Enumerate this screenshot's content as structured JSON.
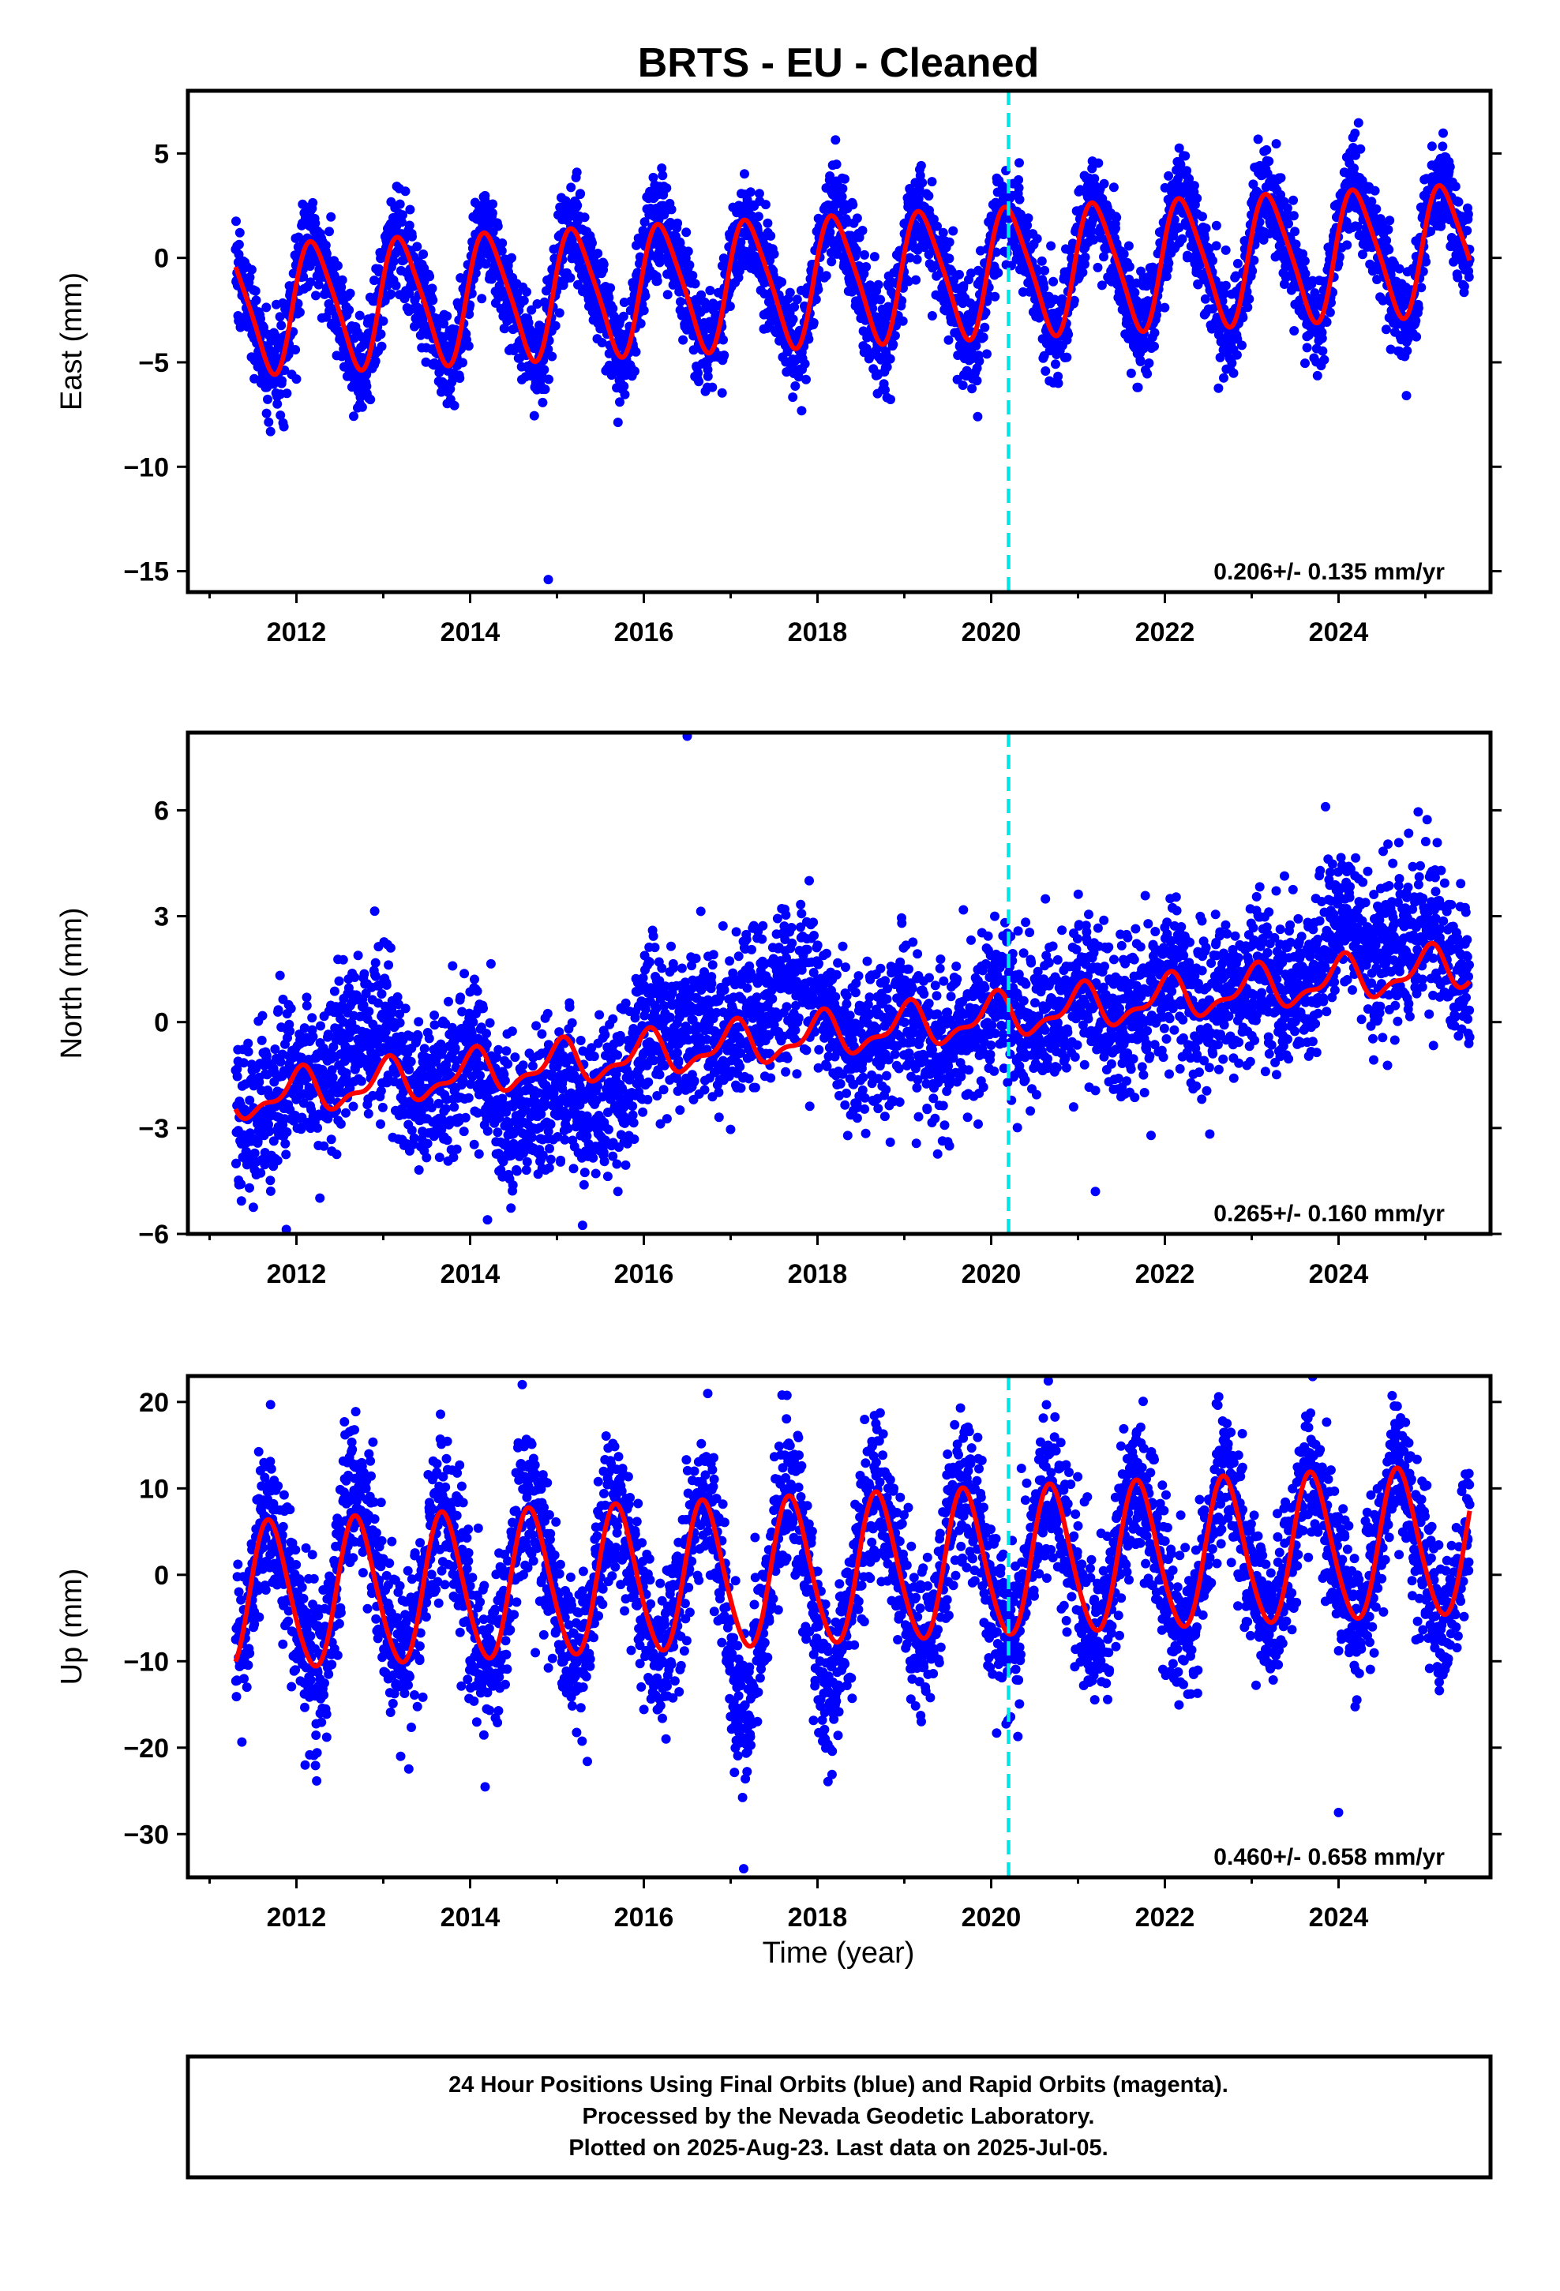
{
  "title": "BRTS  - EU - Cleaned",
  "xlabel": "Time (year)",
  "footer": [
    "24 Hour Positions Using Final Orbits (blue) and Rapid Orbits (magenta).",
    "Processed by the Nevada Geodetic Laboratory.",
    "Plotted on 2025-Aug-23. Last data on 2025-Jul-05."
  ],
  "colors": {
    "points": "#0000ff",
    "model": "#ff0000",
    "event_line": "#00e5e5",
    "frame": "#000000"
  },
  "chart_data": [
    {
      "type": "scatter",
      "name": "east",
      "ylabel": "East (mm)",
      "xlim": [
        2010.75,
        2025.75
      ],
      "ylim": [
        -16,
        8
      ],
      "xticks": [
        2012,
        2014,
        2016,
        2018,
        2020,
        2022,
        2024
      ],
      "yticks": [
        5,
        0,
        -5,
        -10,
        -15
      ],
      "ytick_labels": [
        "5",
        "0",
        "−5",
        "−10",
        "−15"
      ],
      "rate_label": "0.206+/- 0.135 mm/yr",
      "event_line_x": 2020.2,
      "data_start": 2011.3,
      "data_end": 2025.51,
      "model": {
        "intercept": -1.0,
        "rate": 0.206,
        "ref_year": 2018.4,
        "annual_amp": 3.0,
        "annual_phase_deg": 15,
        "semiannual_amp": 0.5,
        "semiannual_phase_deg": 40
      },
      "scatter_sd": 1.2,
      "outliers": [
        [
          2014.9,
          -15.4
        ],
        [
          2019.95,
          -4.6
        ],
        [
          2012.0,
          -5.8
        ]
      ]
    },
    {
      "type": "scatter",
      "name": "north",
      "ylabel": "North (mm)",
      "xlim": [
        2010.75,
        2025.75
      ],
      "ylim": [
        -6,
        8.2
      ],
      "xticks": [
        2012,
        2014,
        2016,
        2018,
        2020,
        2022,
        2024
      ],
      "yticks": [
        6,
        3,
        0,
        -3,
        -6
      ],
      "ytick_labels": [
        "6",
        "3",
        "0",
        "−3",
        "−6"
      ],
      "rate_label": "0.265+/- 0.160 mm/yr",
      "event_line_x": 2020.2,
      "data_start": 2011.3,
      "data_end": 2025.51,
      "model": {
        "intercept": -0.3,
        "rate": 0.265,
        "ref_year": 2018.4,
        "annual_amp": 0.55,
        "annual_phase_deg": 80,
        "semiannual_amp": 0.25,
        "semiannual_phase_deg": 20
      },
      "scatter_sd": 1.1,
      "regional_offsets": [
        {
          "start": 2012.2,
          "end": 2013.2,
          "offset": 1.5
        },
        {
          "start": 2014.0,
          "end": 2016.0,
          "offset": -1.3
        },
        {
          "start": 2016.0,
          "end": 2017.0,
          "offset": 1.0
        },
        {
          "start": 2017.1,
          "end": 2018.1,
          "offset": 1.8
        },
        {
          "start": 2019.0,
          "end": 2019.6,
          "offset": -0.8
        },
        {
          "start": 2023.4,
          "end": 2025.5,
          "offset": 1.1
        }
      ],
      "outliers": [
        [
          2016.5,
          8.1
        ],
        [
          2014.2,
          -5.6
        ],
        [
          2023.85,
          6.1
        ],
        [
          2021.2,
          -4.8
        ]
      ]
    },
    {
      "type": "scatter",
      "name": "up",
      "ylabel": "Up (mm)",
      "xlim": [
        2010.75,
        2025.75
      ],
      "ylim": [
        -35,
        23
      ],
      "xticks": [
        2012,
        2014,
        2016,
        2018,
        2020,
        2022,
        2024
      ],
      "yticks": [
        20,
        10,
        0,
        -10,
        -20,
        -30
      ],
      "ytick_labels": [
        "20",
        "10",
        "0",
        "−10",
        "−20",
        "−30"
      ],
      "rate_label": "0.460+/- 0.658 mm/yr",
      "event_line_x": 2020.2,
      "data_start": 2011.3,
      "data_end": 2025.51,
      "model": {
        "intercept": 0.5,
        "rate": 0.46,
        "ref_year": 2018.4,
        "annual_amp": 8.5,
        "annual_phase_deg": 200,
        "semiannual_amp": 0.8,
        "semiannual_phase_deg": 10
      },
      "scatter_sd": 4.5,
      "regional_offsets": [
        {
          "start": 2012.4,
          "end": 2012.9,
          "offset": 4.0
        },
        {
          "start": 2016.9,
          "end": 2017.3,
          "offset": -9.0
        },
        {
          "start": 2017.9,
          "end": 2018.3,
          "offset": -8.0
        }
      ],
      "outliers": [
        [
          2017.15,
          -34
        ],
        [
          2014.6,
          22
        ],
        [
          2024.0,
          -27.5
        ],
        [
          2012.1,
          -22
        ],
        [
          2013.2,
          -21
        ]
      ]
    }
  ]
}
